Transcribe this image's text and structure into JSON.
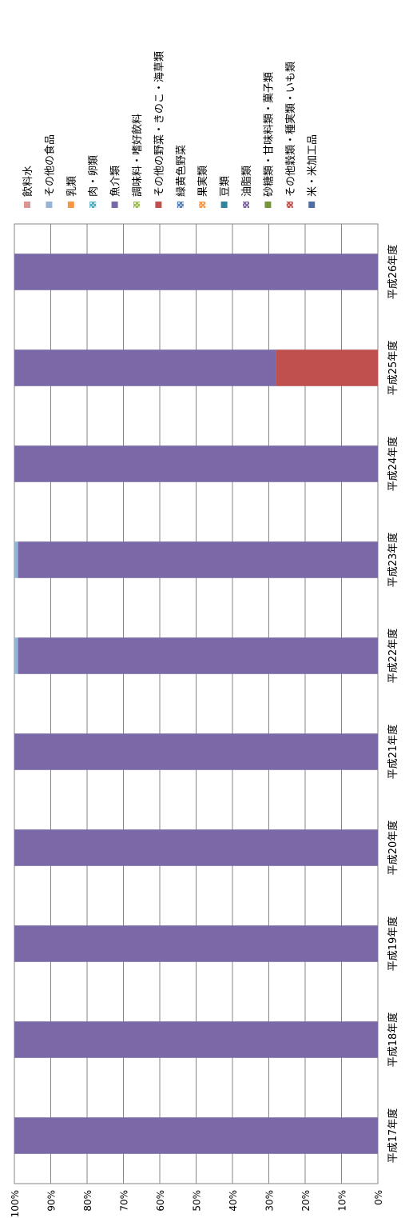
{
  "chart_data": {
    "type": "bar",
    "stacked": true,
    "orientation": "rotated-90",
    "title": "",
    "xlabel": "",
    "ylabel": "",
    "ylim": [
      0,
      100
    ],
    "y_ticks": [
      "0%",
      "10%",
      "20%",
      "30%",
      "40%",
      "50%",
      "60%",
      "70%",
      "80%",
      "90%",
      "100%"
    ],
    "grid": true,
    "legend_position": "top",
    "categories": [
      "平成17年度",
      "平成18年度",
      "平成19年度",
      "平成20年度",
      "平成21年度",
      "平成22年度",
      "平成23年度",
      "平成24年度",
      "平成25年度",
      "平成26年度"
    ],
    "series": [
      {
        "name": "米・米加工品",
        "color": "#4f6fa3",
        "pattern": false,
        "values": [
          0,
          0,
          0,
          0,
          0,
          0,
          0,
          0,
          0,
          0
        ]
      },
      {
        "name": "その他穀類・種実類・いも類",
        "color": "#c0504d",
        "pattern": true,
        "values": [
          0,
          0,
          0,
          0,
          0,
          0,
          0,
          0,
          0,
          0
        ]
      },
      {
        "name": "砂糖類・甘味料類・菓子類",
        "color": "#77933c",
        "pattern": false,
        "values": [
          0,
          0,
          0,
          0,
          0,
          0,
          0,
          0,
          0,
          0
        ]
      },
      {
        "name": "油脂類",
        "color": "#8064a2",
        "pattern": true,
        "values": [
          0,
          0,
          0,
          0,
          0,
          0,
          0,
          0,
          0,
          0
        ]
      },
      {
        "name": "豆類",
        "color": "#31849b",
        "pattern": false,
        "values": [
          0,
          0,
          0,
          0,
          0,
          0,
          0,
          0,
          0,
          0
        ]
      },
      {
        "name": "果実類",
        "color": "#f79646",
        "pattern": true,
        "values": [
          0,
          0,
          0,
          0,
          0,
          0,
          0,
          0,
          0,
          0
        ]
      },
      {
        "name": "緑黄色野菜",
        "color": "#4f81bd",
        "pattern": true,
        "values": [
          0,
          0,
          0,
          0,
          0,
          0,
          0,
          0,
          0,
          0
        ]
      },
      {
        "name": "その他の野菜・きのこ・海草類",
        "color": "#c0504d",
        "pattern": false,
        "values": [
          0,
          0,
          0,
          0,
          0,
          0,
          0,
          0,
          28,
          0
        ]
      },
      {
        "name": "調味料・嗜好飲料",
        "color": "#9bbb59",
        "pattern": true,
        "values": [
          0,
          0,
          0,
          0,
          0,
          0,
          0,
          0,
          0,
          0
        ]
      },
      {
        "name": "魚介類",
        "color": "#7b68a6",
        "pattern": false,
        "values": [
          100,
          100,
          100,
          100,
          100,
          99,
          99,
          100,
          72,
          100
        ]
      },
      {
        "name": "肉・卵類",
        "color": "#4bacc6",
        "pattern": true,
        "values": [
          0,
          0,
          0,
          0,
          0,
          0,
          0,
          0,
          0,
          0
        ]
      },
      {
        "name": "乳類",
        "color": "#f79646",
        "pattern": false,
        "values": [
          0,
          0,
          0,
          0,
          0,
          0,
          0,
          0,
          0,
          0
        ]
      },
      {
        "name": "その他の食品",
        "color": "#95b3d7",
        "pattern": false,
        "values": [
          0,
          0,
          0,
          0,
          0,
          1,
          1,
          0,
          0,
          0
        ]
      },
      {
        "name": "飲料水",
        "color": "#d99694",
        "pattern": false,
        "values": [
          0,
          0,
          0,
          0,
          0,
          0,
          0,
          0,
          0,
          0
        ]
      }
    ]
  }
}
